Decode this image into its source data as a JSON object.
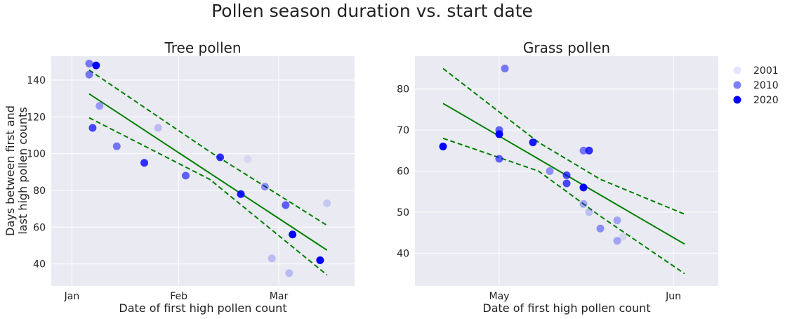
{
  "figure": {
    "title": "Pollen season duration vs. start date",
    "colors": {
      "panel_bg": "#EAEAF2",
      "grid": "#FFFFFF",
      "marker": "#0000FF",
      "fit": "#008000"
    }
  },
  "legend": {
    "placement": "right",
    "entries": [
      {
        "label": "2001",
        "opacity": 0.1
      },
      {
        "label": "2010",
        "opacity": 0.5
      },
      {
        "label": "2020",
        "opacity": 1.0
      }
    ]
  },
  "chart_data": [
    {
      "type": "scatter",
      "title": "Tree pollen",
      "xlabel": "Date of first high pollen count",
      "ylabel": "Days between first and\nlast high pollen counts",
      "xlim": [
        "2019-12-26",
        "2020-03-23"
      ],
      "ylim": [
        28,
        153
      ],
      "x_ticks": [
        {
          "date": "2020-01-01",
          "label": "Jan"
        },
        {
          "date": "2020-02-01",
          "label": "Feb"
        },
        {
          "date": "2020-03-01",
          "label": "Mar"
        }
      ],
      "y_ticks": [
        40,
        60,
        80,
        100,
        120,
        140
      ],
      "grid": true,
      "points": [
        {
          "x": "2020-01-06",
          "y": 149,
          "opacity": 0.5
        },
        {
          "x": "2020-01-06",
          "y": 143,
          "opacity": 0.5
        },
        {
          "x": "2020-01-08",
          "y": 148,
          "opacity": 1.0
        },
        {
          "x": "2020-01-09",
          "y": 126,
          "opacity": 0.35
        },
        {
          "x": "2020-01-07",
          "y": 114,
          "opacity": 0.7
        },
        {
          "x": "2020-01-14",
          "y": 104,
          "opacity": 0.5
        },
        {
          "x": "2020-01-22",
          "y": 95,
          "opacity": 0.8
        },
        {
          "x": "2020-01-26",
          "y": 114,
          "opacity": 0.2
        },
        {
          "x": "2020-02-03",
          "y": 88,
          "opacity": 0.6
        },
        {
          "x": "2020-02-13",
          "y": 98,
          "opacity": 0.8
        },
        {
          "x": "2020-02-19",
          "y": 78,
          "opacity": 0.9
        },
        {
          "x": "2020-02-21",
          "y": 97,
          "opacity": 0.08
        },
        {
          "x": "2020-02-26",
          "y": 82,
          "opacity": 0.4
        },
        {
          "x": "2020-02-28",
          "y": 43,
          "opacity": 0.2
        },
        {
          "x": "2020-03-03",
          "y": 72,
          "opacity": 0.6
        },
        {
          "x": "2020-03-04",
          "y": 35,
          "opacity": 0.2
        },
        {
          "x": "2020-03-05",
          "y": 56,
          "opacity": 1.0
        },
        {
          "x": "2020-03-13",
          "y": 42,
          "opacity": 1.0
        },
        {
          "x": "2020-03-15",
          "y": 73,
          "opacity": 0.15
        }
      ],
      "fit_line": {
        "x": [
          "2020-01-06",
          "2020-03-15"
        ],
        "y": [
          132.5,
          47.5
        ]
      },
      "ci_upper": {
        "x": [
          "2020-01-06",
          "2020-02-10",
          "2020-03-15"
        ],
        "y": [
          145.5,
          101,
          61
        ]
      },
      "ci_lower": {
        "x": [
          "2020-01-06",
          "2020-02-10",
          "2020-03-15"
        ],
        "y": [
          119.5,
          86,
          34
        ]
      }
    },
    {
      "type": "scatter",
      "title": "Grass pollen",
      "xlabel": "Date of first high pollen count",
      "ylabel": "",
      "xlim": [
        "2020-04-16",
        "2020-06-09"
      ],
      "ylim": [
        32,
        88
      ],
      "x_ticks": [
        {
          "date": "2020-05-01",
          "label": "May"
        },
        {
          "date": "2020-06-01",
          "label": "Jun"
        }
      ],
      "y_ticks": [
        40,
        50,
        60,
        70,
        80
      ],
      "grid": true,
      "points": [
        {
          "x": "2020-04-21",
          "y": 66,
          "opacity": 1.0
        },
        {
          "x": "2020-05-02",
          "y": 85,
          "opacity": 0.5
        },
        {
          "x": "2020-05-01",
          "y": 70,
          "opacity": 0.6
        },
        {
          "x": "2020-05-01",
          "y": 69,
          "opacity": 1.0
        },
        {
          "x": "2020-05-01",
          "y": 63,
          "opacity": 0.6
        },
        {
          "x": "2020-05-07",
          "y": 67,
          "opacity": 0.9
        },
        {
          "x": "2020-05-10",
          "y": 60,
          "opacity": 0.4
        },
        {
          "x": "2020-05-13",
          "y": 59,
          "opacity": 0.7
        },
        {
          "x": "2020-05-13",
          "y": 57,
          "opacity": 0.7
        },
        {
          "x": "2020-05-16",
          "y": 65,
          "opacity": 0.5
        },
        {
          "x": "2020-05-17",
          "y": 65,
          "opacity": 0.8
        },
        {
          "x": "2020-05-16",
          "y": 56,
          "opacity": 1.0
        },
        {
          "x": "2020-05-16",
          "y": 52,
          "opacity": 0.3
        },
        {
          "x": "2020-05-17",
          "y": 50,
          "opacity": 0.2
        },
        {
          "x": "2020-05-19",
          "y": 46,
          "opacity": 0.4
        },
        {
          "x": "2020-05-22",
          "y": 48,
          "opacity": 0.3
        },
        {
          "x": "2020-05-22",
          "y": 43,
          "opacity": 0.3
        },
        {
          "x": "2020-05-23",
          "y": 44,
          "opacity": 0.08
        }
      ],
      "fit_line": {
        "x": [
          "2020-04-21",
          "2020-06-03"
        ],
        "y": [
          76.5,
          42.2
        ]
      },
      "ci_upper": {
        "x": [
          "2020-04-21",
          "2020-05-08",
          "2020-05-19",
          "2020-06-03"
        ],
        "y": [
          85,
          67,
          58,
          49.5
        ]
      },
      "ci_lower": {
        "x": [
          "2020-04-21",
          "2020-05-08",
          "2020-05-19",
          "2020-06-03"
        ],
        "y": [
          68,
          60,
          49,
          35
        ]
      }
    }
  ]
}
